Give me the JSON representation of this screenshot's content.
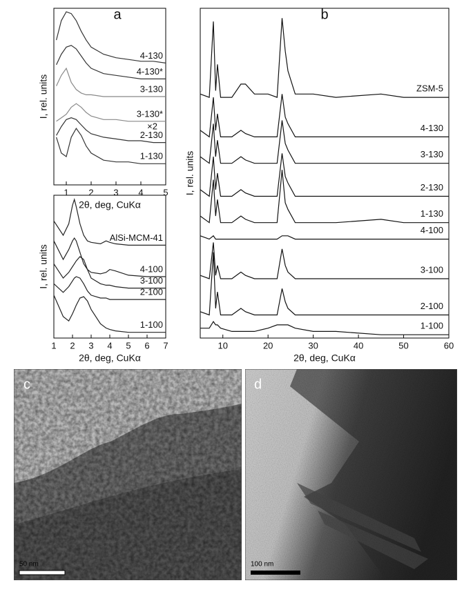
{
  "chart_data": [
    {
      "type": "line",
      "title": "a",
      "xlabel": "2θ, deg, CuKα",
      "ylabel": "I, rel. units",
      "annotation": "×2",
      "xlim": [
        0.5,
        5
      ],
      "xticks": [
        1,
        2,
        3,
        4,
        5
      ],
      "ylim": [
        0,
        100
      ],
      "x": [
        0.6,
        0.8,
        1.0,
        1.2,
        1.4,
        1.6,
        1.8,
        2.0,
        2.5,
        3,
        3.5,
        4,
        4.5,
        5
      ],
      "series": [
        {
          "name": "4-130",
          "color": "#333333",
          "values": [
            82,
            93,
            98,
            97,
            93,
            87,
            82,
            78,
            74,
            72,
            71,
            70,
            70,
            69
          ]
        },
        {
          "name": "4-130*",
          "color": "#333333",
          "values": [
            68,
            74,
            78,
            79,
            77,
            73,
            69,
            66,
            63,
            62,
            61,
            60,
            60,
            60
          ]
        },
        {
          "name": "3-130",
          "color": "#888888",
          "values": [
            56,
            62,
            66,
            58,
            54,
            52,
            51,
            51,
            50,
            50,
            50,
            50,
            50,
            50
          ]
        },
        {
          "name": "3-130*",
          "color": "#888888",
          "values": [
            36,
            38,
            40,
            44,
            46,
            44,
            41,
            39,
            37,
            37,
            36,
            36,
            36,
            36
          ]
        },
        {
          "name": "2-130",
          "color": "#333333",
          "values": [
            28,
            33,
            37,
            38,
            37,
            34,
            31,
            29,
            27,
            26,
            25,
            25,
            24,
            24
          ]
        },
        {
          "name": "1-130",
          "color": "#333333",
          "values": [
            27,
            18,
            16,
            27,
            32,
            28,
            22,
            18,
            14,
            13,
            13,
            12,
            12,
            12
          ]
        }
      ]
    },
    {
      "type": "line",
      "xlabel": "2θ, deg, CuKα",
      "ylabel": "I, rel. units",
      "xlim": [
        1,
        7
      ],
      "xticks": [
        1,
        2,
        3,
        4,
        5,
        6,
        7
      ],
      "ylim": [
        0,
        100
      ],
      "x": [
        1,
        1.5,
        1.8,
        2,
        2.1,
        2.2,
        2.4,
        2.6,
        2.8,
        3,
        3.5,
        3.8,
        4,
        4.3,
        5,
        6,
        7
      ],
      "series": [
        {
          "name": "AlSi-MCM-41",
          "color": "#222222",
          "values": [
            82,
            72,
            80,
            93,
            97,
            92,
            80,
            72,
            68,
            67,
            66,
            68,
            67,
            66,
            65,
            65,
            65
          ]
        },
        {
          "name": "4-100",
          "color": "#222222",
          "values": [
            68,
            55,
            62,
            68,
            70,
            68,
            60,
            52,
            48,
            46,
            45,
            46,
            48,
            47,
            44,
            43,
            43
          ]
        },
        {
          "name": "3-100",
          "color": "#222222",
          "values": [
            52,
            42,
            46,
            50,
            52,
            54,
            57,
            55,
            48,
            42,
            38,
            37,
            37,
            36,
            35,
            35,
            35
          ]
        },
        {
          "name": "2-100",
          "color": "#222222",
          "values": [
            38,
            32,
            36,
            40,
            42,
            43,
            42,
            38,
            33,
            30,
            28,
            28,
            27,
            27,
            27,
            27,
            27
          ]
        },
        {
          "name": "1-100",
          "color": "#222222",
          "values": [
            30,
            15,
            12,
            17,
            20,
            23,
            28,
            29,
            26,
            20,
            10,
            7,
            6,
            5,
            4,
            4,
            4
          ]
        }
      ]
    },
    {
      "type": "line",
      "title": "b",
      "xlabel": "2θ, deg, CuKα",
      "ylabel": "I, rel. units",
      "xlim": [
        5,
        60
      ],
      "xticks": [
        10,
        20,
        30,
        40,
        50,
        60
      ],
      "ylim": [
        0,
        100
      ],
      "x": [
        5,
        7,
        7.9,
        8.4,
        8.8,
        9.5,
        12,
        14,
        15,
        17,
        20,
        22,
        23.1,
        23.8,
        24.4,
        26,
        30,
        35,
        45,
        50,
        60
      ],
      "series": [
        {
          "name": "ZSM-5",
          "color": "#111111",
          "values": [
            74,
            73,
            96,
            75,
            83,
            73,
            73,
            77,
            77,
            74,
            74,
            73,
            97,
            87,
            81,
            74,
            74,
            73,
            74,
            73,
            73
          ]
        },
        {
          "name": "4-130",
          "color": "#111111",
          "values": [
            63,
            61,
            73,
            63,
            68,
            61,
            61,
            63,
            62,
            61,
            61,
            61,
            74,
            67,
            65,
            61,
            61,
            61,
            61,
            61,
            61
          ]
        },
        {
          "name": "3-130",
          "color": "#111111",
          "values": [
            55,
            53,
            65,
            55,
            60,
            53,
            53,
            55,
            54,
            53,
            53,
            53,
            66,
            59,
            57,
            53,
            53,
            53,
            53,
            53,
            53
          ]
        },
        {
          "name": "2-130",
          "color": "#111111",
          "values": [
            45,
            43,
            55,
            45,
            50,
            43,
            43,
            45,
            44,
            43,
            43,
            43,
            56,
            49,
            47,
            43,
            43,
            43,
            43,
            43,
            43
          ]
        },
        {
          "name": "1-130",
          "color": "#111111",
          "values": [
            37,
            35,
            48,
            37,
            42,
            35,
            35,
            37,
            36,
            35,
            35,
            35,
            51,
            41,
            39,
            35,
            35,
            35,
            36,
            35,
            35
          ]
        },
        {
          "name": "4-100",
          "color": "#111111",
          "values": [
            31,
            30,
            31,
            30,
            30,
            30,
            30,
            30,
            30,
            30,
            30,
            30,
            31,
            31,
            31,
            30,
            30,
            30,
            30,
            30,
            30
          ]
        },
        {
          "name": "3-100",
          "color": "#111111",
          "values": [
            19,
            18,
            29,
            19,
            22,
            18,
            18,
            20,
            19,
            18,
            18,
            18,
            27,
            22,
            20,
            18,
            18,
            18,
            18,
            18,
            18
          ]
        },
        {
          "name": "2-100",
          "color": "#111111",
          "values": [
            8,
            7,
            26,
            9,
            14,
            7,
            7,
            9,
            8,
            7,
            7,
            7,
            15,
            11,
            9,
            7,
            7,
            7,
            7,
            7,
            7
          ]
        },
        {
          "name": "1-100",
          "color": "#111111",
          "values": [
            3,
            3,
            5,
            4,
            4,
            3,
            2,
            2,
            2,
            2,
            3,
            4,
            4,
            4,
            4,
            3,
            2,
            2,
            1,
            1,
            1
          ]
        }
      ]
    }
  ],
  "images": [
    {
      "label": "c",
      "scale_bar": "50 nm"
    },
    {
      "label": "d",
      "scale_bar": "100 nm"
    }
  ]
}
